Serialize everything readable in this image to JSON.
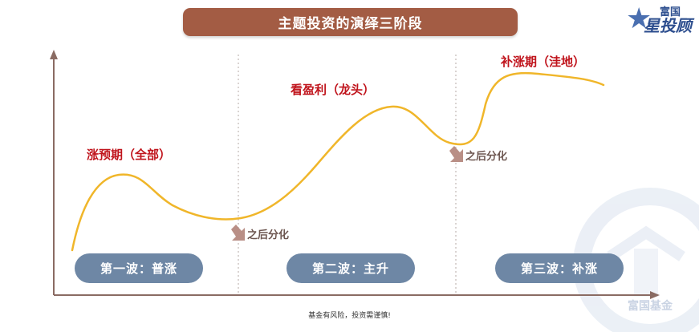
{
  "title": "主题投资的演绎三阶段",
  "logo": {
    "top_text": "富国",
    "main_text": "星投顾"
  },
  "phases": [
    {
      "label": "涨预期（全部）"
    },
    {
      "label": "看盈利（龙头）"
    },
    {
      "label": "补涨期（洼地）"
    }
  ],
  "divergences": [
    {
      "label": "之后分化"
    },
    {
      "label": "之后分化"
    }
  ],
  "waves": [
    {
      "label": "第一波：普涨"
    },
    {
      "label": "第二波：主升"
    },
    {
      "label": "第三波：补涨"
    }
  ],
  "watermark": "富国基金",
  "footer": "基金有风险，投资需谨慎!",
  "colors": {
    "title_bg": "#a35c44",
    "curve": "#f0b62a",
    "phase_text": "#c0141c",
    "pill_bg": "#6e87a5",
    "arrow": "#b98f86",
    "axis": "#8a6b63"
  }
}
